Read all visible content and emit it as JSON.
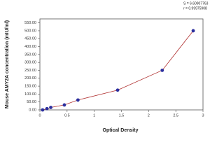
{
  "chart_data": {
    "type": "scatter",
    "x_label": "Optical Density",
    "y_label": "Mouse AMY2A concentration (mIU/ml)",
    "annotations": [
      "S = 6.60907763",
      "r = 0.99975908"
    ],
    "series": [
      {
        "x": [
          0.05,
          0.13,
          0.2,
          0.45,
          0.7,
          1.43,
          2.25,
          2.82
        ],
        "values": [
          0,
          7.8,
          15.6,
          31.3,
          62.5,
          125,
          250,
          500
        ],
        "color": "#2b2f9e",
        "line_color": "#b03030"
      }
    ],
    "xlim": [
      0,
      3
    ],
    "xticks": [
      0,
      0.5,
      1,
      1.5,
      2,
      2.5,
      3
    ],
    "ylim": [
      0,
      575
    ],
    "yticks": [
      {
        "value": 0,
        "label": "0.00"
      },
      {
        "value": 50,
        "label": "50.00"
      },
      {
        "value": 100,
        "label": "100.00"
      },
      {
        "value": 150,
        "label": "150.00"
      },
      {
        "value": 200,
        "label": "200.00"
      },
      {
        "value": 250,
        "label": "250.00"
      },
      {
        "value": 300,
        "label": "300.00"
      },
      {
        "value": 350,
        "label": "350.00"
      },
      {
        "value": 400,
        "label": "400.00"
      },
      {
        "value": 450,
        "label": "450.00"
      },
      {
        "value": 500,
        "label": "500.00"
      },
      {
        "value": 550,
        "label": "550.00"
      }
    ]
  }
}
